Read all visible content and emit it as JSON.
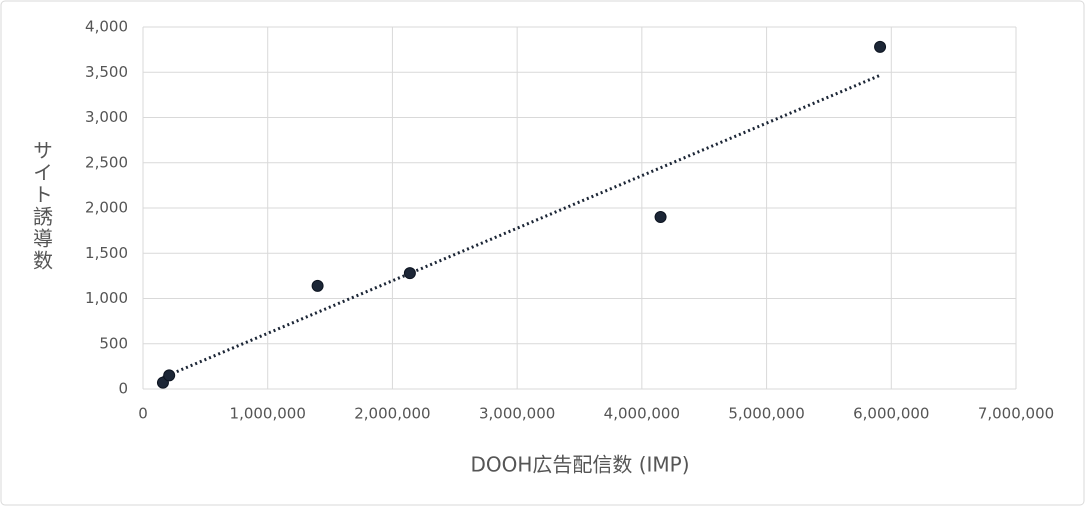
{
  "chart_data": {
    "type": "scatter",
    "x_label": "DOOH広告配信数 (IMP)",
    "y_label": "サイト誘導数",
    "series": [
      {
        "name": "サイト誘導数",
        "color": "#1c2636",
        "x": [
          160000,
          210000,
          1400000,
          2140000,
          4150000,
          5910000
        ],
        "values": [
          70,
          150,
          1140,
          1280,
          1900,
          3780
        ]
      }
    ],
    "trendline": "linear",
    "xlim": [
      0,
      7000000
    ],
    "xticks": [
      0,
      {
        "value": 1000000,
        "label": "1,000,000"
      },
      {
        "value": 2000000,
        "label": "2,000,000"
      },
      {
        "value": 3000000,
        "label": "3,000,000"
      },
      {
        "value": 4000000,
        "label": "4,000,000"
      },
      {
        "value": 5000000,
        "label": "5,000,000"
      },
      {
        "value": 6000000,
        "label": "6,000,000"
      },
      {
        "value": 7000000,
        "label": "7,000,000"
      }
    ],
    "ylim": [
      0,
      4000
    ],
    "yticks": [
      0,
      500,
      {
        "value": 1000,
        "label": "1,000"
      },
      {
        "value": 1500,
        "label": "1,500"
      },
      {
        "value": 2000,
        "label": "2,000"
      },
      {
        "value": 2500,
        "label": "2,500"
      },
      {
        "value": 3000,
        "label": "3,000"
      },
      {
        "value": 3500,
        "label": "3,500"
      },
      {
        "value": 4000,
        "label": "4,000"
      }
    ],
    "grid": true
  }
}
